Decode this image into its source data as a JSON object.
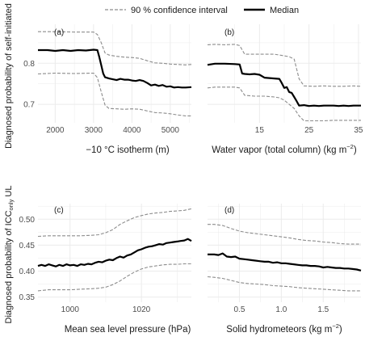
{
  "colors": {
    "median": "#000000",
    "ci": "#8c8c8c",
    "grid": "#ebebeb",
    "panel_bg": "#ffffff"
  },
  "legend": {
    "position": "top",
    "ci_label": "90 % confidence interval",
    "median_label": "Median"
  },
  "ylabel_top": "Diagnosed probability of self-initiated",
  "ylabel_bottom_main": "Diagnosed probability of ICC",
  "ylabel_bottom_sub": "only",
  "ylabel_bottom_end": " UL",
  "chart_data": [
    {
      "type": "line",
      "panel_label": "(a)",
      "xlabel": "−10 °C isotherm (m)",
      "xlim": [
        1550,
        5550
      ],
      "ylim": [
        0.655,
        0.895
      ],
      "xticks": [
        2000,
        3000,
        4000,
        5000
      ],
      "yticks": [
        0.7,
        0.8
      ],
      "ytick_labels": [
        "0.7",
        "0.8"
      ],
      "series": [
        {
          "role": "median",
          "x": [
            1550,
            1800,
            2000,
            2200,
            2400,
            2600,
            2800,
            3000,
            3100,
            3150,
            3200,
            3250,
            3300,
            3400,
            3500,
            3600,
            3700,
            3800,
            3900,
            4000,
            4100,
            4200,
            4300,
            4400,
            4500,
            4600,
            4700,
            4800,
            4900,
            5000,
            5100,
            5200,
            5300,
            5400,
            5550
          ],
          "y": [
            0.832,
            0.832,
            0.83,
            0.832,
            0.83,
            0.832,
            0.831,
            0.833,
            0.832,
            0.815,
            0.795,
            0.775,
            0.766,
            0.763,
            0.761,
            0.759,
            0.762,
            0.76,
            0.76,
            0.758,
            0.757,
            0.759,
            0.757,
            0.752,
            0.746,
            0.748,
            0.745,
            0.747,
            0.743,
            0.744,
            0.741,
            0.742,
            0.741,
            0.741,
            0.742
          ]
        },
        {
          "role": "ci_upper",
          "x": [
            1550,
            2000,
            2500,
            3000,
            3100,
            3200,
            3300,
            3400,
            3600,
            3800,
            4000,
            4200,
            4400,
            4600,
            4800,
            5000,
            5200,
            5400,
            5550
          ],
          "y": [
            0.877,
            0.877,
            0.876,
            0.876,
            0.87,
            0.85,
            0.825,
            0.82,
            0.817,
            0.815,
            0.814,
            0.812,
            0.806,
            0.801,
            0.8,
            0.798,
            0.797,
            0.796,
            0.797
          ]
        },
        {
          "role": "ci_lower",
          "x": [
            1550,
            2000,
            2500,
            3000,
            3100,
            3200,
            3300,
            3400,
            3600,
            3800,
            4000,
            4200,
            4400,
            4600,
            4800,
            5000,
            5200,
            5400,
            5550
          ],
          "y": [
            0.774,
            0.776,
            0.775,
            0.776,
            0.765,
            0.73,
            0.698,
            0.69,
            0.689,
            0.688,
            0.689,
            0.688,
            0.684,
            0.68,
            0.679,
            0.677,
            0.674,
            0.672,
            0.672
          ]
        }
      ]
    },
    {
      "type": "line",
      "panel_label": "(b)",
      "xlabel_main": "Water vapor (total column) (kg m",
      "xlabel_sup": "−2",
      "xlabel_end": ")",
      "xlim": [
        4.5,
        35.5
      ],
      "ylim": [
        0.655,
        0.895
      ],
      "xticks": [
        15,
        25,
        35
      ],
      "yticks": [
        0.7,
        0.8
      ],
      "series": [
        {
          "role": "median",
          "x": [
            4.5,
            6,
            8,
            10,
            11,
            11.5,
            12,
            13,
            14,
            15,
            16,
            17,
            18,
            19,
            19.5,
            20,
            20.5,
            21,
            21.5,
            22,
            22.5,
            23,
            24,
            25,
            26,
            27,
            28,
            29,
            30,
            31,
            32,
            33,
            34,
            35,
            35.5
          ],
          "y": [
            0.796,
            0.799,
            0.799,
            0.798,
            0.797,
            0.775,
            0.774,
            0.773,
            0.774,
            0.772,
            0.765,
            0.764,
            0.763,
            0.762,
            0.752,
            0.74,
            0.742,
            0.73,
            0.728,
            0.718,
            0.708,
            0.697,
            0.698,
            0.696,
            0.697,
            0.696,
            0.697,
            0.697,
            0.697,
            0.696,
            0.697,
            0.696,
            0.697,
            0.697,
            0.697
          ]
        },
        {
          "role": "ci_upper",
          "x": [
            4.5,
            6,
            8,
            10,
            11,
            12,
            14,
            16,
            18,
            19,
            20,
            21,
            22,
            23,
            24,
            26,
            28,
            30,
            32,
            34,
            35.5
          ],
          "y": [
            0.845,
            0.846,
            0.845,
            0.846,
            0.843,
            0.822,
            0.822,
            0.822,
            0.822,
            0.82,
            0.818,
            0.816,
            0.81,
            0.762,
            0.745,
            0.744,
            0.745,
            0.744,
            0.744,
            0.745,
            0.744
          ]
        },
        {
          "role": "ci_lower",
          "x": [
            4.5,
            6,
            8,
            10,
            11,
            12,
            14,
            16,
            18,
            19,
            20,
            21,
            22,
            23,
            24,
            26,
            28,
            30,
            32,
            34,
            35.5
          ],
          "y": [
            0.74,
            0.742,
            0.742,
            0.742,
            0.74,
            0.722,
            0.72,
            0.72,
            0.718,
            0.716,
            0.71,
            0.7,
            0.69,
            0.672,
            0.66,
            0.66,
            0.66,
            0.661,
            0.661,
            0.661,
            0.661
          ]
        }
      ]
    },
    {
      "type": "line",
      "panel_label": "(c)",
      "xlabel": "Mean sea level pressure (hPa)",
      "xlim": [
        991,
        1034
      ],
      "ylim": [
        0.34,
        0.53
      ],
      "xticks": [
        1000,
        1020
      ],
      "yticks": [
        0.35,
        0.4,
        0.45,
        0.5
      ],
      "ytick_labels": [
        "0.35",
        "0.40",
        "0.45",
        "0.50"
      ],
      "series": [
        {
          "role": "median",
          "x": [
            991,
            992,
            993,
            994,
            995,
            996,
            997,
            998,
            999,
            1000,
            1001,
            1002,
            1003,
            1004,
            1005,
            1006,
            1007,
            1008,
            1009,
            1010,
            1011,
            1012,
            1013,
            1014,
            1015,
            1016,
            1017,
            1018,
            1019,
            1020,
            1021,
            1022,
            1023,
            1024,
            1025,
            1026,
            1027,
            1028,
            1029,
            1030,
            1031,
            1032,
            1033,
            1034
          ],
          "y": [
            0.41,
            0.412,
            0.41,
            0.413,
            0.411,
            0.409,
            0.412,
            0.41,
            0.413,
            0.411,
            0.412,
            0.41,
            0.413,
            0.412,
            0.414,
            0.413,
            0.416,
            0.418,
            0.417,
            0.42,
            0.422,
            0.421,
            0.425,
            0.428,
            0.426,
            0.43,
            0.432,
            0.436,
            0.44,
            0.442,
            0.445,
            0.447,
            0.448,
            0.45,
            0.452,
            0.451,
            0.454,
            0.455,
            0.456,
            0.457,
            0.458,
            0.459,
            0.462,
            0.458
          ]
        },
        {
          "role": "ci_upper",
          "x": [
            991,
            994,
            997,
            1000,
            1003,
            1006,
            1008,
            1010,
            1012,
            1014,
            1016,
            1018,
            1020,
            1022,
            1024,
            1026,
            1028,
            1030,
            1032,
            1034
          ],
          "y": [
            0.467,
            0.468,
            0.468,
            0.468,
            0.468,
            0.469,
            0.47,
            0.474,
            0.48,
            0.49,
            0.497,
            0.503,
            0.507,
            0.51,
            0.512,
            0.513,
            0.515,
            0.516,
            0.517,
            0.52
          ]
        },
        {
          "role": "ci_lower",
          "x": [
            991,
            994,
            997,
            1000,
            1003,
            1006,
            1008,
            1010,
            1012,
            1014,
            1016,
            1018,
            1020,
            1022,
            1024,
            1026,
            1028,
            1030,
            1032,
            1034
          ],
          "y": [
            0.362,
            0.364,
            0.364,
            0.364,
            0.365,
            0.366,
            0.367,
            0.369,
            0.374,
            0.381,
            0.39,
            0.398,
            0.404,
            0.408,
            0.41,
            0.412,
            0.413,
            0.413,
            0.414,
            0.414
          ]
        }
      ]
    },
    {
      "type": "line",
      "panel_label": "(d)",
      "xlabel_main": "Solid hydrometeors (kg m",
      "xlabel_sup": "−2",
      "xlabel_end": ")",
      "xlim": [
        0.12,
        1.95
      ],
      "ylim": [
        0.34,
        0.53
      ],
      "xticks": [
        0.5,
        1.0,
        1.5
      ],
      "xtick_labels": [
        "0.5",
        "1.0",
        "1.5"
      ],
      "yticks": [
        0.35,
        0.4,
        0.45,
        0.5
      ],
      "series": [
        {
          "role": "median",
          "x": [
            0.12,
            0.2,
            0.25,
            0.3,
            0.35,
            0.4,
            0.45,
            0.5,
            0.55,
            0.6,
            0.65,
            0.7,
            0.75,
            0.8,
            0.85,
            0.9,
            0.95,
            1.0,
            1.05,
            1.1,
            1.15,
            1.2,
            1.25,
            1.3,
            1.35,
            1.4,
            1.45,
            1.5,
            1.55,
            1.6,
            1.65,
            1.7,
            1.75,
            1.8,
            1.85,
            1.9,
            1.95
          ],
          "y": [
            0.432,
            0.432,
            0.431,
            0.434,
            0.428,
            0.427,
            0.428,
            0.424,
            0.423,
            0.422,
            0.421,
            0.42,
            0.419,
            0.418,
            0.418,
            0.416,
            0.417,
            0.415,
            0.415,
            0.414,
            0.413,
            0.412,
            0.411,
            0.411,
            0.41,
            0.41,
            0.409,
            0.407,
            0.408,
            0.407,
            0.406,
            0.406,
            0.405,
            0.405,
            0.404,
            0.403,
            0.401
          ]
        },
        {
          "role": "ci_upper",
          "x": [
            0.12,
            0.2,
            0.3,
            0.4,
            0.5,
            0.6,
            0.7,
            0.8,
            0.9,
            1.0,
            1.1,
            1.2,
            1.3,
            1.4,
            1.5,
            1.6,
            1.7,
            1.8,
            1.95
          ],
          "y": [
            0.49,
            0.49,
            0.488,
            0.482,
            0.477,
            0.474,
            0.472,
            0.47,
            0.468,
            0.466,
            0.464,
            0.461,
            0.459,
            0.458,
            0.456,
            0.455,
            0.453,
            0.452,
            0.452
          ]
        },
        {
          "role": "ci_lower",
          "x": [
            0.12,
            0.2,
            0.3,
            0.4,
            0.5,
            0.6,
            0.7,
            0.8,
            0.9,
            1.0,
            1.1,
            1.2,
            1.3,
            1.4,
            1.5,
            1.6,
            1.7,
            1.8,
            1.95
          ],
          "y": [
            0.389,
            0.388,
            0.386,
            0.382,
            0.378,
            0.376,
            0.375,
            0.374,
            0.372,
            0.371,
            0.37,
            0.368,
            0.367,
            0.366,
            0.365,
            0.364,
            0.363,
            0.362,
            0.362
          ]
        }
      ]
    }
  ]
}
